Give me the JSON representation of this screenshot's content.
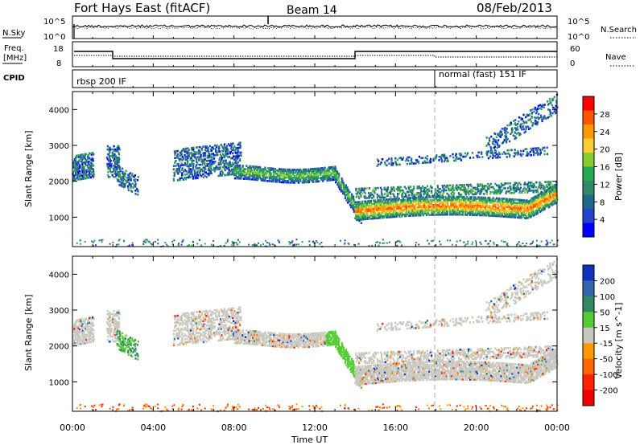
{
  "header": {
    "station": "Fort Hays East (fitACF)",
    "beam": "Beam 14",
    "date": "08/Feb/2013"
  },
  "top_panels": {
    "nsky_label": "N.Sky",
    "nsearch_label": "N.Search",
    "nsky_ticks": [
      "10^5",
      "10^0"
    ],
    "nsearch_ticks": [
      "10^5",
      "10^0"
    ],
    "freq_label_1": "Freq.",
    "freq_label_2": "[MHz]",
    "freq_ticks": [
      "18",
      "8"
    ],
    "nave_label": "Nave",
    "nave_ticks": [
      "60",
      "0"
    ],
    "cpid_label": "CPID",
    "cpid_segments": [
      {
        "label": "rbsp 200 IF",
        "start_hour": 0
      },
      {
        "label": "normal (fast) 151 IF",
        "start_hour": 18
      }
    ]
  },
  "chart_data": [
    {
      "type": "heatmap",
      "name": "power",
      "ylabel": "Slant Range [km]",
      "ylim": [
        180,
        4500
      ],
      "yticks": [
        1000,
        2000,
        3000,
        4000
      ],
      "xlim": [
        0,
        24
      ],
      "colorbar": {
        "label": "Power [dB]",
        "ticks": [
          "28",
          "24",
          "20",
          "16",
          "12",
          "8",
          "4"
        ],
        "colors": [
          "#ff0000",
          "#ff5500",
          "#ff9900",
          "#ffcc33",
          "#88cc33",
          "#22aa55",
          "#338866",
          "#226688",
          "#2244cc",
          "#0000ff"
        ]
      }
    },
    {
      "type": "heatmap",
      "name": "velocity",
      "ylabel": "Slant Range [km]",
      "ylim": [
        180,
        4500
      ],
      "yticks": [
        1000,
        2000,
        3000,
        4000
      ],
      "xlim": [
        0,
        24
      ],
      "xlabel": "Time UT",
      "xticks": [
        "00:00",
        "04:00",
        "08:00",
        "12:00",
        "16:00",
        "20:00",
        "00:00"
      ],
      "colorbar": {
        "label": "Velocity [m s^-1]",
        "ticks": [
          "200",
          "100",
          "50",
          "15",
          "-15",
          "-50",
          "-100",
          "-200"
        ],
        "colors": [
          "#1133bb",
          "#3366aa",
          "#338866",
          "#55cc33",
          "#c8c8c0",
          "#ff9900",
          "#ff6600",
          "#ff2200",
          "#ee0000"
        ]
      }
    }
  ]
}
